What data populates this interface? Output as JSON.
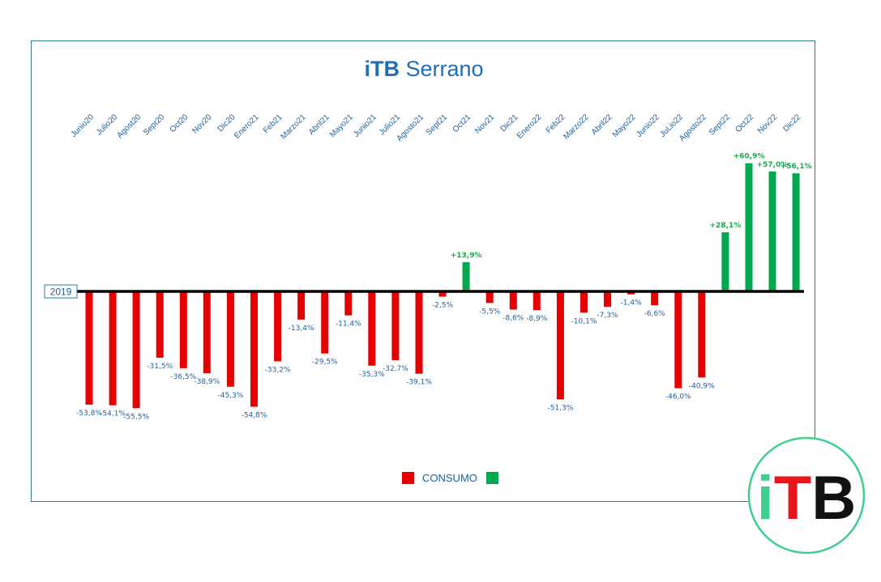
{
  "logo": {
    "i": "i",
    "T": "T",
    "B": "B",
    "colors": {
      "i": "#3ecf8e",
      "T": "#e8151b",
      "B": "#111111",
      "ring": "#3ecf8e"
    }
  },
  "colors": {
    "negative": "#e60000",
    "positive": "#00a84f",
    "baseline": "#000000",
    "frame": "#2f7f95"
  },
  "chart_data": {
    "type": "bar",
    "title": {
      "bold": "iTB",
      "rest": " Serrano"
    },
    "baseline_label": "2019",
    "xlabel": "",
    "ylabel": "",
    "ylim": [
      -60,
      65
    ],
    "grid": false,
    "legend": {
      "placement": "bottom",
      "entries": [
        "CONSUMO",
        ""
      ]
    },
    "categories": [
      "Junio20",
      "Julio20",
      "Agost20",
      "Sept20",
      "Oct20",
      "Nov20",
      "Dic20",
      "Enero21",
      "Feb21",
      "Marzo21",
      "Abril21",
      "Mayo21",
      "Junio21",
      "Julio21",
      "Agosto21",
      "Sept21",
      "Oct21",
      "Nov21",
      "Dic21",
      "Enero22",
      "Feb22",
      "Marzo22",
      "Abril22",
      "Mayo22",
      "Junio22",
      "JuLio22",
      "Agosto22",
      "Sept22",
      "Oct22",
      "Nov22",
      "Dic22"
    ],
    "values": [
      -53.8,
      -54.1,
      -55.5,
      -31.5,
      -36.5,
      -38.9,
      -45.3,
      -54.8,
      -33.2,
      -13.4,
      -29.5,
      -11.4,
      -35.3,
      -32.7,
      -39.1,
      -2.5,
      13.9,
      -5.5,
      -8.6,
      -8.9,
      -51.3,
      -10.1,
      -7.3,
      -1.4,
      -6.6,
      -46.0,
      -40.9,
      28.1,
      60.9,
      57.0,
      56.1
    ],
    "labels": [
      "-53,8%",
      "-54,1%",
      "-55,5%",
      "-31,5%",
      "-36,5%",
      "-38,9%",
      "-45,3%",
      "-54,8%",
      "-33,2%",
      "-13,4%",
      "-29,5%",
      "-11,4%",
      "-35,3%",
      "-32,7%",
      "-39,1%",
      "-2,5%",
      "+13,9%",
      "-5,5%",
      "-8,6%",
      "-8,9%",
      "-51,3%",
      "-10,1%",
      "-7,3%",
      "-1,4%",
      "-6,6%",
      "-46,0%",
      "-40,9%",
      "+28,1%",
      "+60,9%",
      "+57,0%",
      "+56,1%"
    ]
  }
}
